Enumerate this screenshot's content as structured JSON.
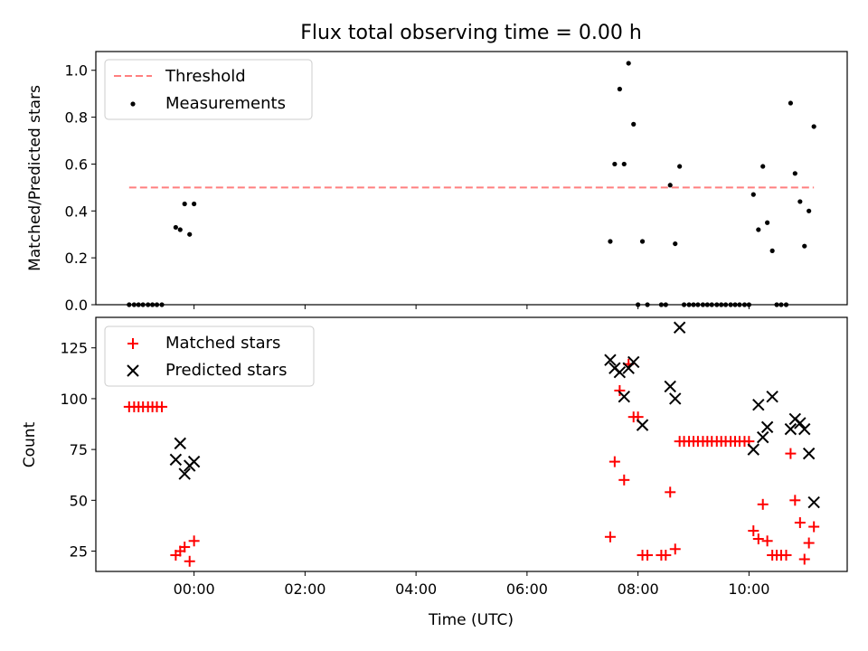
{
  "chart_data": [
    {
      "type": "scatter",
      "title": "Flux total observing time = 0.00 h",
      "xlabel": "",
      "ylabel": "Matched/Predicted stars",
      "x_unit": "hours (UTC)",
      "xlim": [
        -1.77,
        11.77
      ],
      "ylim": [
        0.0,
        1.08
      ],
      "yticks": [
        "0.0",
        "0.2",
        "0.4",
        "0.6",
        "0.8",
        "1.0"
      ],
      "grid": false,
      "legend_position": "top-left",
      "series": [
        {
          "name": "Threshold",
          "kind": "dashed-line",
          "color": "#ff7f7f",
          "x": [
            -1.17,
            11.17
          ],
          "y": [
            0.5,
            0.5
          ]
        },
        {
          "name": "Measurements",
          "kind": "points",
          "color": "#000000",
          "x": [
            -1.17,
            -1.08,
            -1.0,
            -0.92,
            -0.83,
            -0.75,
            -0.67,
            -0.58,
            -0.33,
            -0.25,
            -0.17,
            -0.08,
            0.0,
            7.5,
            7.58,
            7.67,
            7.75,
            7.92,
            8.0,
            8.08,
            8.17,
            8.42,
            8.5,
            8.58,
            8.67,
            8.75,
            8.83,
            8.92,
            9.0,
            9.08,
            9.17,
            9.25,
            9.33,
            9.42,
            9.5,
            9.58,
            9.67,
            9.75,
            9.83,
            9.92,
            10.0,
            10.08,
            10.17,
            10.25,
            10.33,
            10.42,
            10.5,
            10.58,
            10.67,
            10.75,
            10.83,
            10.92,
            11.0,
            11.08,
            11.17
          ],
          "y": [
            0.0,
            0.0,
            0.0,
            0.0,
            0.0,
            0.0,
            0.0,
            0.0,
            0.33,
            0.32,
            0.43,
            0.3,
            0.43,
            0.27,
            0.6,
            0.92,
            0.6,
            0.77,
            0.0,
            0.27,
            0.0,
            0.0,
            0.0,
            0.51,
            0.26,
            0.59,
            0.0,
            0.0,
            0.0,
            0.0,
            0.0,
            0.0,
            0.0,
            0.0,
            0.0,
            0.0,
            0.0,
            0.0,
            0.0,
            0.0,
            0.0,
            0.47,
            0.32,
            0.59,
            0.35,
            0.23,
            0.0,
            0.0,
            0.0,
            0.86,
            0.56,
            0.44,
            0.25,
            0.4,
            0.76
          ],
          "extra_points": [
            {
              "x": 7.83,
              "y": 1.03
            }
          ]
        }
      ]
    },
    {
      "type": "scatter",
      "title": "",
      "xlabel": "Time (UTC)",
      "ylabel": "Count",
      "x_unit": "hours (UTC)",
      "xlim": [
        -1.77,
        11.77
      ],
      "ylim": [
        15,
        140
      ],
      "yticks": [
        "25",
        "50",
        "75",
        "100",
        "125"
      ],
      "xticks": [
        "00:00",
        "02:00",
        "04:00",
        "06:00",
        "08:00",
        "10:00"
      ],
      "xtick_hours": [
        0,
        2,
        4,
        6,
        8,
        10
      ],
      "grid": false,
      "legend_position": "top-left",
      "series": [
        {
          "name": "Matched stars",
          "kind": "plus",
          "color": "#ff0000",
          "x": [
            -1.17,
            -1.08,
            -1.0,
            -0.92,
            -0.83,
            -0.75,
            -0.67,
            -0.58,
            -0.33,
            -0.25,
            -0.17,
            -0.08,
            0.0,
            7.5,
            7.58,
            7.67,
            7.75,
            7.83,
            7.92,
            8.0,
            8.08,
            8.17,
            8.42,
            8.5,
            8.58,
            8.67,
            8.75,
            8.83,
            8.92,
            9.0,
            9.08,
            9.17,
            9.25,
            9.33,
            9.42,
            9.5,
            9.58,
            9.67,
            9.75,
            9.83,
            9.92,
            10.0,
            10.08,
            10.17,
            10.25,
            10.33,
            10.42,
            10.5,
            10.58,
            10.67,
            10.75,
            10.83,
            10.92,
            11.0,
            11.08,
            11.17
          ],
          "y": [
            96,
            96,
            96,
            96,
            96,
            96,
            96,
            96,
            23,
            25,
            27,
            20,
            30,
            32,
            69,
            104,
            60,
            117,
            91,
            91,
            23,
            23,
            23,
            23,
            54,
            26,
            79,
            79,
            79,
            79,
            79,
            79,
            79,
            79,
            79,
            79,
            79,
            79,
            79,
            79,
            79,
            79,
            35,
            31,
            48,
            30,
            23,
            23,
            23,
            23,
            73,
            50,
            39,
            21,
            29,
            37
          ]
        },
        {
          "name": "Predicted stars",
          "kind": "x",
          "color": "#000000",
          "x": [
            -0.33,
            -0.25,
            -0.17,
            -0.08,
            0.0,
            7.5,
            7.58,
            7.67,
            7.75,
            7.83,
            7.92,
            8.08,
            8.58,
            8.67,
            8.75,
            10.08,
            10.17,
            10.25,
            10.33,
            10.42,
            10.75,
            10.83,
            10.92,
            11.0,
            11.08,
            11.17
          ],
          "y": [
            70,
            78,
            63,
            67,
            69,
            119,
            115,
            113,
            101,
            115,
            118,
            87,
            106,
            100,
            135,
            75,
            97,
            81,
            86,
            101,
            85,
            90,
            88,
            85,
            73,
            49
          ]
        }
      ]
    }
  ]
}
